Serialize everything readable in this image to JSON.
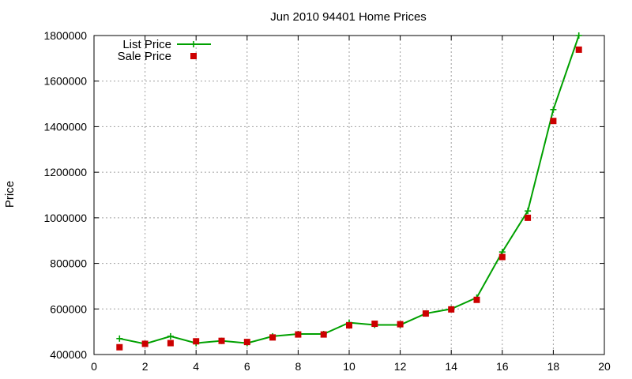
{
  "chart_data": {
    "type": "line",
    "title": "Jun 2010 94401 Home Prices",
    "xlabel": "",
    "ylabel": "Price",
    "xlim": [
      0,
      20
    ],
    "ylim": [
      400000,
      1800000
    ],
    "x_ticks": [
      0,
      2,
      4,
      6,
      8,
      10,
      12,
      14,
      16,
      18,
      20
    ],
    "y_ticks": [
      400000,
      600000,
      800000,
      1000000,
      1200000,
      1400000,
      1600000,
      1800000
    ],
    "grid": true,
    "legend_position": "top-left",
    "series": [
      {
        "name": "List Price",
        "style": "line+crosses",
        "color": "#00a000",
        "x": [
          1,
          2,
          3,
          4,
          5,
          6,
          7,
          8,
          9,
          10,
          11,
          12,
          13,
          14,
          15,
          16,
          17,
          18,
          19
        ],
        "y": [
          470000,
          447000,
          480000,
          450000,
          460000,
          450000,
          480000,
          490000,
          490000,
          540000,
          530000,
          530000,
          580000,
          600000,
          650000,
          850000,
          1030000,
          1475000,
          1800000
        ]
      },
      {
        "name": "Sale Price",
        "style": "squares",
        "color": "#cc0000",
        "x": [
          1,
          2,
          3,
          4,
          5,
          6,
          7,
          8,
          9,
          10,
          11,
          12,
          13,
          14,
          15,
          16,
          17,
          18,
          19
        ],
        "y": [
          432000,
          447000,
          450000,
          458000,
          460000,
          455000,
          475000,
          488000,
          488000,
          528000,
          535000,
          533000,
          580000,
          598000,
          640000,
          828000,
          1000000,
          1425000,
          1738000
        ]
      }
    ]
  }
}
